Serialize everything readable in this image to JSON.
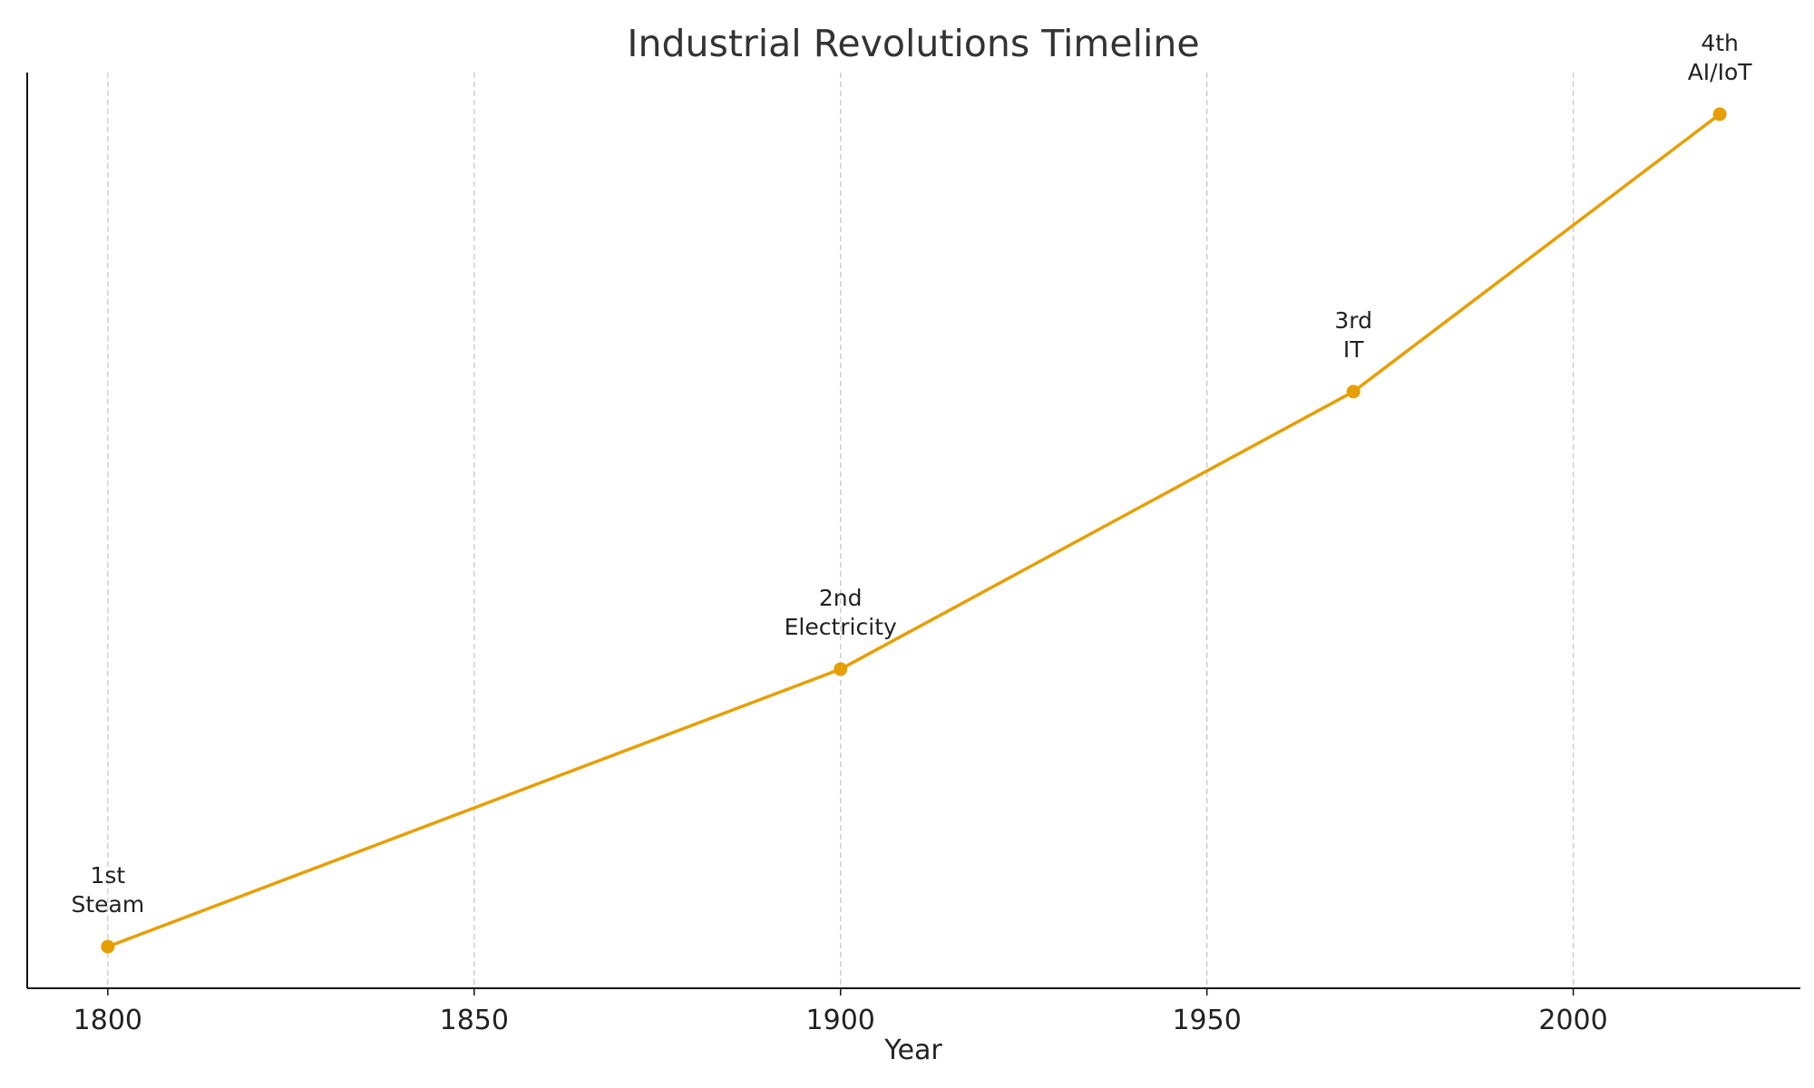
{
  "chart_data": {
    "type": "line",
    "title": "Industrial Revolutions Timeline",
    "xlabel": "Year",
    "ylabel": "",
    "x": [
      1800,
      1900,
      1970,
      2020
    ],
    "y": [
      1,
      2,
      3,
      4
    ],
    "point_labels": [
      [
        "1st",
        "Steam"
      ],
      [
        "2nd",
        "Electricity"
      ],
      [
        "3rd",
        "IT"
      ],
      [
        "4th",
        "AI/IoT"
      ]
    ],
    "xticks": [
      1800,
      1850,
      1900,
      1950,
      2000
    ],
    "xlim": [
      1789,
      2031
    ],
    "ylim": [
      0.85,
      4.15
    ],
    "grid": "x-only, dashed",
    "legend": "none",
    "colors": {
      "line": "#E69F00",
      "grid": "#c8c8c8",
      "axis": "#111111",
      "text": "#222222"
    }
  }
}
